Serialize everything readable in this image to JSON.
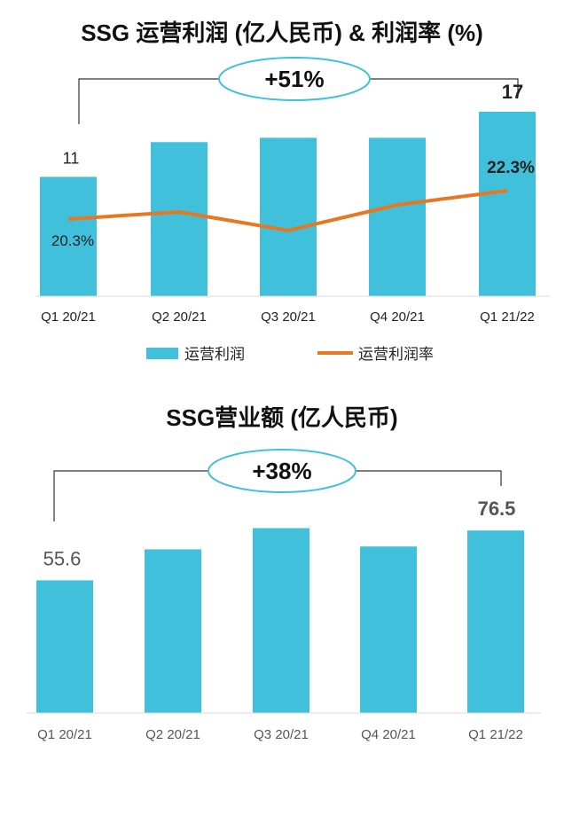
{
  "chart_data": [
    {
      "type": "bar",
      "title": "SSG 运营利润 (亿人民币) & 利润率 (%)",
      "categories": [
        "Q1 20/21",
        "Q2 20/21",
        "Q3 20/21",
        "Q4 20/21",
        "Q1 21/22"
      ],
      "series": [
        {
          "name": "运营利润",
          "type": "bar",
          "values": [
            11,
            14.2,
            14.6,
            14.6,
            17
          ]
        },
        {
          "name": "运营利润率",
          "type": "line",
          "values": [
            20.3,
            20.8,
            19.5,
            21.3,
            22.3
          ]
        }
      ],
      "bar_data_labels": [
        "11",
        "",
        "",
        "",
        "17"
      ],
      "line_data_labels": [
        "20.3%",
        "",
        "",
        "",
        "22.3%"
      ],
      "growth_callout": "+51%",
      "ylim": [
        0,
        18.4
      ],
      "line_ylim": [
        10,
        25
      ],
      "grid": false,
      "legend_position": "bottom",
      "colors": {
        "bar": "#40C0DA",
        "line": "#E87722",
        "ellipse_stroke": "#40C0DA"
      }
    },
    {
      "type": "bar",
      "title": "SSG营业额 (亿人民币)",
      "categories": [
        "Q1 20/21",
        "Q2 20/21",
        "Q3 20/21",
        "Q4 20/21",
        "Q1 21/22"
      ],
      "series": [
        {
          "values": [
            55.6,
            68.6,
            77.5,
            69.8,
            76.5
          ]
        }
      ],
      "bar_data_labels": [
        "55.6",
        "",
        "",
        "",
        "76.5"
      ],
      "growth_callout": "+38%",
      "ylim": [
        0,
        98
      ],
      "grid": false,
      "colors": {
        "bar": "#40C0DA",
        "ellipse_stroke": "#40C0DA"
      }
    }
  ]
}
